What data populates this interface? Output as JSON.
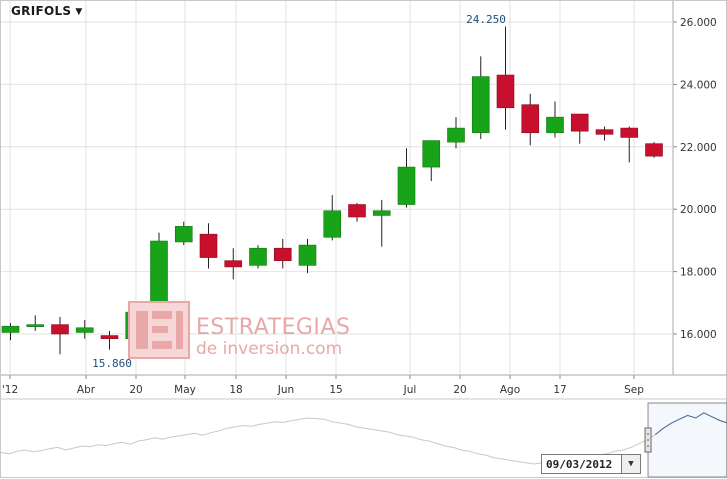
{
  "header": {
    "ticker": "GRIFOLS"
  },
  "chart_data": {
    "type": "candlestick",
    "title": "GRIFOLS",
    "y_axis": {
      "side": "right",
      "ylim": [
        14.6,
        26.6
      ],
      "ticks": [
        "16.000",
        "18.000",
        "20.000",
        "22.000",
        "24.000",
        "26.000"
      ]
    },
    "x_tick_labels": [
      "'12",
      "Abr",
      "20",
      "May",
      "18",
      "Jun",
      "15",
      "Jul",
      "20",
      "Ago",
      "17",
      "Sep"
    ],
    "annotations": {
      "high_label": "24.250",
      "low_label": "15.860"
    },
    "candles": [
      {
        "open": 16.05,
        "high": 16.35,
        "low": 15.8,
        "close": 16.25
      },
      {
        "open": 16.25,
        "high": 16.6,
        "low": 16.1,
        "close": 16.3
      },
      {
        "open": 16.3,
        "high": 16.55,
        "low": 15.35,
        "close": 16.0
      },
      {
        "open": 16.05,
        "high": 16.45,
        "low": 15.85,
        "close": 16.2
      },
      {
        "open": 15.95,
        "high": 16.1,
        "low": 15.5,
        "close": 15.85
      },
      {
        "open": 15.85,
        "high": 16.75,
        "low": 15.8,
        "close": 16.7
      },
      {
        "open": 16.7,
        "high": 19.25,
        "low": 16.5,
        "close": 18.98
      },
      {
        "open": 18.95,
        "high": 19.6,
        "low": 18.85,
        "close": 19.45
      },
      {
        "open": 19.2,
        "high": 19.55,
        "low": 18.1,
        "close": 18.45
      },
      {
        "open": 18.35,
        "high": 18.75,
        "low": 17.75,
        "close": 18.15
      },
      {
        "open": 18.2,
        "high": 18.85,
        "low": 18.1,
        "close": 18.75
      },
      {
        "open": 18.75,
        "high": 19.05,
        "low": 18.1,
        "close": 18.35
      },
      {
        "open": 18.2,
        "high": 19.05,
        "low": 17.95,
        "close": 18.85
      },
      {
        "open": 19.1,
        "high": 20.45,
        "low": 19.0,
        "close": 19.95
      },
      {
        "open": 20.15,
        "high": 20.2,
        "low": 19.6,
        "close": 19.75
      },
      {
        "open": 19.8,
        "high": 20.3,
        "low": 18.8,
        "close": 19.95
      },
      {
        "open": 20.15,
        "high": 21.95,
        "low": 20.05,
        "close": 21.35
      },
      {
        "open": 21.35,
        "high": 22.2,
        "low": 20.9,
        "close": 22.2
      },
      {
        "open": 22.15,
        "high": 22.95,
        "low": 21.95,
        "close": 22.6
      },
      {
        "open": 22.45,
        "high": 24.9,
        "low": 22.25,
        "close": 24.25
      },
      {
        "open": 24.3,
        "high": 25.85,
        "low": 22.55,
        "close": 23.25
      },
      {
        "open": 23.35,
        "high": 23.7,
        "low": 22.05,
        "close": 22.45
      },
      {
        "open": 22.45,
        "high": 23.45,
        "low": 22.3,
        "close": 22.95
      },
      {
        "open": 23.05,
        "high": 23.05,
        "low": 22.1,
        "close": 22.5
      },
      {
        "open": 22.55,
        "high": 22.65,
        "low": 22.2,
        "close": 22.4
      },
      {
        "open": 22.6,
        "high": 22.65,
        "low": 21.5,
        "close": 22.3
      },
      {
        "open": 22.1,
        "high": 22.15,
        "low": 21.65,
        "close": 21.7
      }
    ],
    "navigator_series": [
      0.32,
      0.3,
      0.34,
      0.36,
      0.33,
      0.35,
      0.38,
      0.4,
      0.36,
      0.39,
      0.42,
      0.41,
      0.44,
      0.43,
      0.46,
      0.48,
      0.45,
      0.5,
      0.52,
      0.55,
      0.53,
      0.56,
      0.58,
      0.6,
      0.62,
      0.59,
      0.63,
      0.66,
      0.7,
      0.72,
      0.74,
      0.73,
      0.76,
      0.78,
      0.8,
      0.79,
      0.82,
      0.84,
      0.86,
      0.85,
      0.84,
      0.8,
      0.78,
      0.76,
      0.72,
      0.7,
      0.68,
      0.66,
      0.64,
      0.6,
      0.58,
      0.56,
      0.52,
      0.5,
      0.46,
      0.42,
      0.4,
      0.36,
      0.34,
      0.3,
      0.28,
      0.24,
      0.22,
      0.2,
      0.18,
      0.16,
      0.14,
      0.16,
      0.18,
      0.16,
      0.2,
      0.22,
      0.24,
      0.26,
      0.28,
      0.3,
      0.34,
      0.36,
      0.4,
      0.46,
      0.52,
      0.6,
      0.7,
      0.78,
      0.84,
      0.9,
      0.86,
      0.94,
      0.88,
      0.82,
      0.78
    ],
    "navigator_selection": [
      0.89,
      1.0
    ],
    "colors": {
      "up": "#19a319",
      "down": "#c8102e",
      "grid": "#e2e2e2",
      "axis_text": "#333333",
      "navigator_line": "#c8c8c8"
    }
  },
  "watermark": {
    "line1": "ESTRATEGIAS",
    "line2": "de inversion.com"
  },
  "navigator": {
    "date_value": "09/03/2012"
  }
}
